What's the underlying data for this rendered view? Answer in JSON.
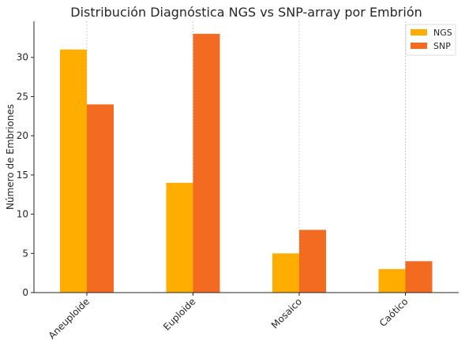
{
  "chart_data": {
    "type": "bar",
    "title": "Distribución Diagnóstica NGS vs SNP-array por Embrión",
    "xlabel": "",
    "ylabel": "Número de Embriones",
    "categories": [
      "Aneuploide",
      "Euploide",
      "Mosaico",
      "Caótico"
    ],
    "series": [
      {
        "name": "NGS",
        "color": "#FFAE00",
        "values": [
          31,
          14,
          5,
          3
        ]
      },
      {
        "name": "SNP",
        "color": "#F26B21",
        "values": [
          24,
          33,
          8,
          4
        ]
      }
    ],
    "ylim": [
      0,
      34.6
    ],
    "yticks": [
      0,
      5,
      10,
      15,
      20,
      25,
      30
    ],
    "grid": "vertical-dotted",
    "legend": "top-right"
  }
}
